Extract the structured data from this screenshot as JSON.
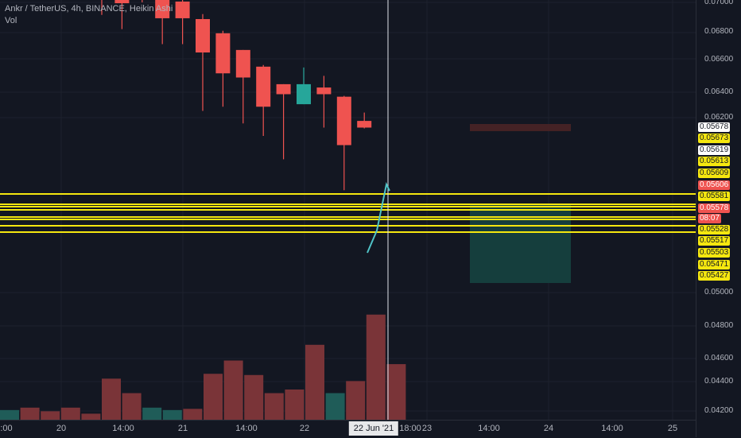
{
  "legend": {
    "symbol_line": "Ankr / TetherUS, 4h, BINANCE, Heikin Ashi",
    "volume_label": "Vol"
  },
  "colors": {
    "background": "#131722",
    "bull": "#26a69a",
    "bear": "#ef5350",
    "yellow_line": "#f5e70f",
    "stop_zone": "#4a2326",
    "target_zone": "#15403f",
    "crosshair": "#e0e3eb"
  },
  "price_axis": {
    "ticks": [
      "0.07000",
      "0.06800",
      "0.06600",
      "0.06400",
      "0.06200",
      "0.05000",
      "0.04800",
      "0.04600",
      "0.04400",
      "0.04200"
    ],
    "labels": [
      {
        "text": "0.05678",
        "style": "white"
      },
      {
        "text": "0.05673",
        "style": "yellow"
      },
      {
        "text": "0.05619",
        "style": "white"
      },
      {
        "text": "0.05613",
        "style": "yellow"
      },
      {
        "text": "0.05609",
        "style": "yellow"
      },
      {
        "text": "0.05606",
        "style": "red"
      },
      {
        "text": "0.05581",
        "style": "yellow"
      },
      {
        "text": "0.05578",
        "style": "red"
      },
      {
        "text": "08:07",
        "style": "red"
      },
      {
        "text": "0.05528",
        "style": "yellow"
      },
      {
        "text": "0.05517",
        "style": "yellow"
      },
      {
        "text": "0.05503",
        "style": "yellow"
      },
      {
        "text": "0.05471",
        "style": "yellow"
      },
      {
        "text": "0.05427",
        "style": "yellow"
      }
    ]
  },
  "time_axis": {
    "labels": [
      ":00",
      "20",
      "14:00",
      "21",
      "14:00",
      "22",
      "18:00",
      "23",
      "14:00",
      "24",
      "14:00",
      "25"
    ],
    "crosshair_label": "22 Jun '21"
  },
  "candles": [
    {
      "o": 0.0705,
      "h": 0.0712,
      "l": 0.0685,
      "c": 0.071,
      "dir": "bear"
    },
    {
      "o": 0.071,
      "h": 0.0712,
      "l": 0.0668,
      "c": 0.0699,
      "dir": "bear"
    },
    {
      "o": 0.0718,
      "h": 0.0719,
      "l": 0.07,
      "c": 0.0703,
      "dir": "bear"
    },
    {
      "o": 0.0718,
      "h": 0.0719,
      "l": 0.065,
      "c": 0.0681,
      "dir": "bear"
    },
    {
      "o": 0.0701,
      "h": 0.0703,
      "l": 0.065,
      "c": 0.0681,
      "dir": "bear"
    },
    {
      "o": 0.068,
      "h": 0.0686,
      "l": 0.057,
      "c": 0.064,
      "dir": "bear"
    },
    {
      "o": 0.0663,
      "h": 0.0666,
      "l": 0.0575,
      "c": 0.0615,
      "dir": "bear"
    },
    {
      "o": 0.0643,
      "h": 0.0643,
      "l": 0.0555,
      "c": 0.061,
      "dir": "bear"
    },
    {
      "o": 0.0623,
      "h": 0.0625,
      "l": 0.054,
      "c": 0.0575,
      "dir": "bear"
    },
    {
      "o": 0.0602,
      "h": 0.0602,
      "l": 0.0512,
      "c": 0.059,
      "dir": "bear"
    },
    {
      "o": 0.0578,
      "h": 0.0622,
      "l": 0.0578,
      "c": 0.0602,
      "dir": "bull"
    },
    {
      "o": 0.0598,
      "h": 0.0612,
      "l": 0.055,
      "c": 0.059,
      "dir": "bear"
    },
    {
      "o": 0.0587,
      "h": 0.0588,
      "l": 0.0475,
      "c": 0.0529,
      "dir": "bear"
    },
    {
      "o": 0.0558,
      "h": 0.0568,
      "l": 0.0549,
      "c": 0.055,
      "dir": "bear"
    }
  ],
  "volumes": [
    {
      "v": 0.08,
      "dir": "bull"
    },
    {
      "v": 0.1,
      "dir": "bear"
    },
    {
      "v": 0.07,
      "dir": "bear"
    },
    {
      "v": 0.1,
      "dir": "bear"
    },
    {
      "v": 0.05,
      "dir": "bear"
    },
    {
      "v": 0.34,
      "dir": "bear"
    },
    {
      "v": 0.22,
      "dir": "bear"
    },
    {
      "v": 0.1,
      "dir": "bull"
    },
    {
      "v": 0.08,
      "dir": "bull"
    },
    {
      "v": 0.09,
      "dir": "bear"
    },
    {
      "v": 0.38,
      "dir": "bear"
    },
    {
      "v": 0.49,
      "dir": "bear"
    },
    {
      "v": 0.37,
      "dir": "bear"
    },
    {
      "v": 0.22,
      "dir": "bear"
    },
    {
      "v": 0.25,
      "dir": "bear"
    },
    {
      "v": 0.62,
      "dir": "bear"
    },
    {
      "v": 0.22,
      "dir": "bull"
    },
    {
      "v": 0.32,
      "dir": "bear"
    },
    {
      "v": 0.87,
      "dir": "bear"
    },
    {
      "v": 0.46,
      "dir": "bear"
    }
  ],
  "horizontal_levels": [
    0.05581,
    0.05528,
    0.05517,
    0.05503,
    0.05471,
    0.05427
  ],
  "position_tool": {
    "stop": 0.05678,
    "entry": 0.05581,
    "target": 0.05427
  }
}
